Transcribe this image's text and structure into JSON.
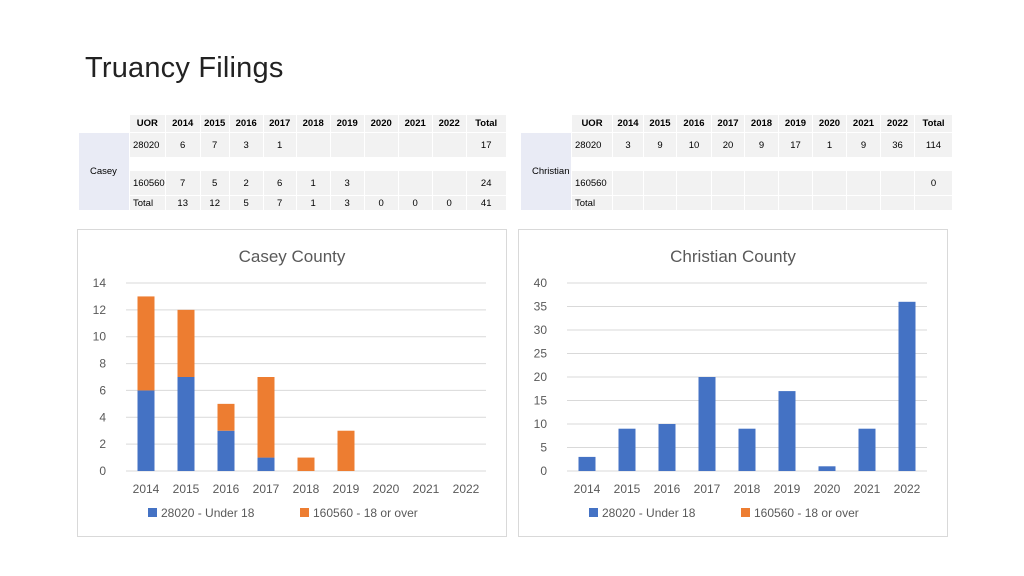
{
  "page": {
    "title": "Truancy Filings"
  },
  "colors": {
    "series_under18": "#4472c4",
    "series_over18": "#ed7d31",
    "grid": "#d9d9d9",
    "axis_text": "#595959"
  },
  "tables": [
    {
      "county": "Casey",
      "headers": [
        "UOR",
        "2014",
        "2015",
        "2016",
        "2017",
        "2018",
        "2019",
        "2020",
        "2021",
        "2022",
        "Total"
      ],
      "rows": [
        [
          "28020",
          "6",
          "7",
          "3",
          "1",
          "",
          "",
          "",
          "",
          "",
          "17"
        ],
        [
          "160560",
          "7",
          "5",
          "2",
          "6",
          "1",
          "3",
          "",
          "",
          "",
          "24"
        ]
      ],
      "total_row": [
        "Total",
        "13",
        "12",
        "5",
        "7",
        "1",
        "3",
        "0",
        "0",
        "0",
        "41"
      ]
    },
    {
      "county": "Christian",
      "headers": [
        "UOR",
        "2014",
        "2015",
        "2016",
        "2017",
        "2018",
        "2019",
        "2020",
        "2021",
        "2022",
        "Total"
      ],
      "rows": [
        [
          "28020",
          "3",
          "9",
          "10",
          "20",
          "9",
          "17",
          "1",
          "9",
          "36",
          "114"
        ],
        [
          "160560",
          "",
          "",
          "",
          "",
          "",
          "",
          "",
          "",
          "",
          "0"
        ]
      ],
      "total_row": [
        "Total",
        "",
        "",
        "",
        "",
        "",
        "",
        "",
        "",
        "",
        ""
      ]
    }
  ],
  "chart_data": [
    {
      "type": "bar",
      "stacked": true,
      "title": "Casey County",
      "categories": [
        "2014",
        "2015",
        "2016",
        "2017",
        "2018",
        "2019",
        "2020",
        "2021",
        "2022"
      ],
      "series": [
        {
          "name": "28020 - Under 18",
          "values": [
            6,
            7,
            3,
            1,
            0,
            0,
            0,
            0,
            0
          ]
        },
        {
          "name": "160560 - 18 or over",
          "values": [
            7,
            5,
            2,
            6,
            1,
            3,
            0,
            0,
            0
          ]
        }
      ],
      "ylim": [
        0,
        14
      ],
      "yticks": [
        0,
        2,
        4,
        6,
        8,
        10,
        12,
        14
      ],
      "grid": true,
      "legend": "bottom"
    },
    {
      "type": "bar",
      "stacked": true,
      "title": "Christian County",
      "categories": [
        "2014",
        "2015",
        "2016",
        "2017",
        "2018",
        "2019",
        "2020",
        "2021",
        "2022"
      ],
      "series": [
        {
          "name": "28020 - Under 18",
          "values": [
            3,
            9,
            10,
            20,
            9,
            17,
            1,
            9,
            36
          ]
        },
        {
          "name": "160560 - 18 or over",
          "values": [
            0,
            0,
            0,
            0,
            0,
            0,
            0,
            0,
            0
          ]
        }
      ],
      "ylim": [
        0,
        40
      ],
      "yticks": [
        0,
        5,
        10,
        15,
        20,
        25,
        30,
        35,
        40
      ],
      "grid": true,
      "legend": "bottom"
    }
  ]
}
